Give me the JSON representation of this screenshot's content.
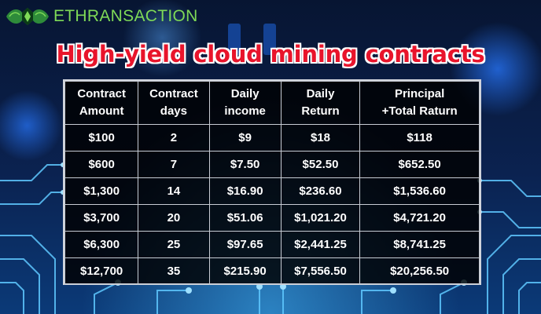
{
  "brand": {
    "logo_icon": "dragon-emblem-icon",
    "name": "ETHRANSACTION",
    "color": "#7ed957"
  },
  "title": "High-yield cloud mining contracts",
  "colors": {
    "title": "#e8142b",
    "table_text": "#ffffff",
    "table_border": "#c8ccd4"
  },
  "table": {
    "headers": [
      [
        "Contract",
        "Amount"
      ],
      [
        "Contract",
        "days"
      ],
      [
        "Daily",
        "income"
      ],
      [
        "Daily",
        "Return"
      ],
      [
        "Principal",
        "+Total Raturn"
      ]
    ],
    "rows": [
      [
        "$100",
        "2",
        "$9",
        "$18",
        "$118"
      ],
      [
        "$600",
        "7",
        "$7.50",
        "$52.50",
        "$652.50"
      ],
      [
        "$1,300",
        "14",
        "$16.90",
        "$236.60",
        "$1,536.60"
      ],
      [
        "$3,700",
        "20",
        "$51.06",
        "$1,021.20",
        "$4,721.20"
      ],
      [
        "$6,300",
        "25",
        "$97.65",
        "$2,441.25",
        "$8,741.25"
      ],
      [
        "$12,700",
        "35",
        "$215.90",
        "$7,556.50",
        "$20,256.50"
      ]
    ]
  }
}
